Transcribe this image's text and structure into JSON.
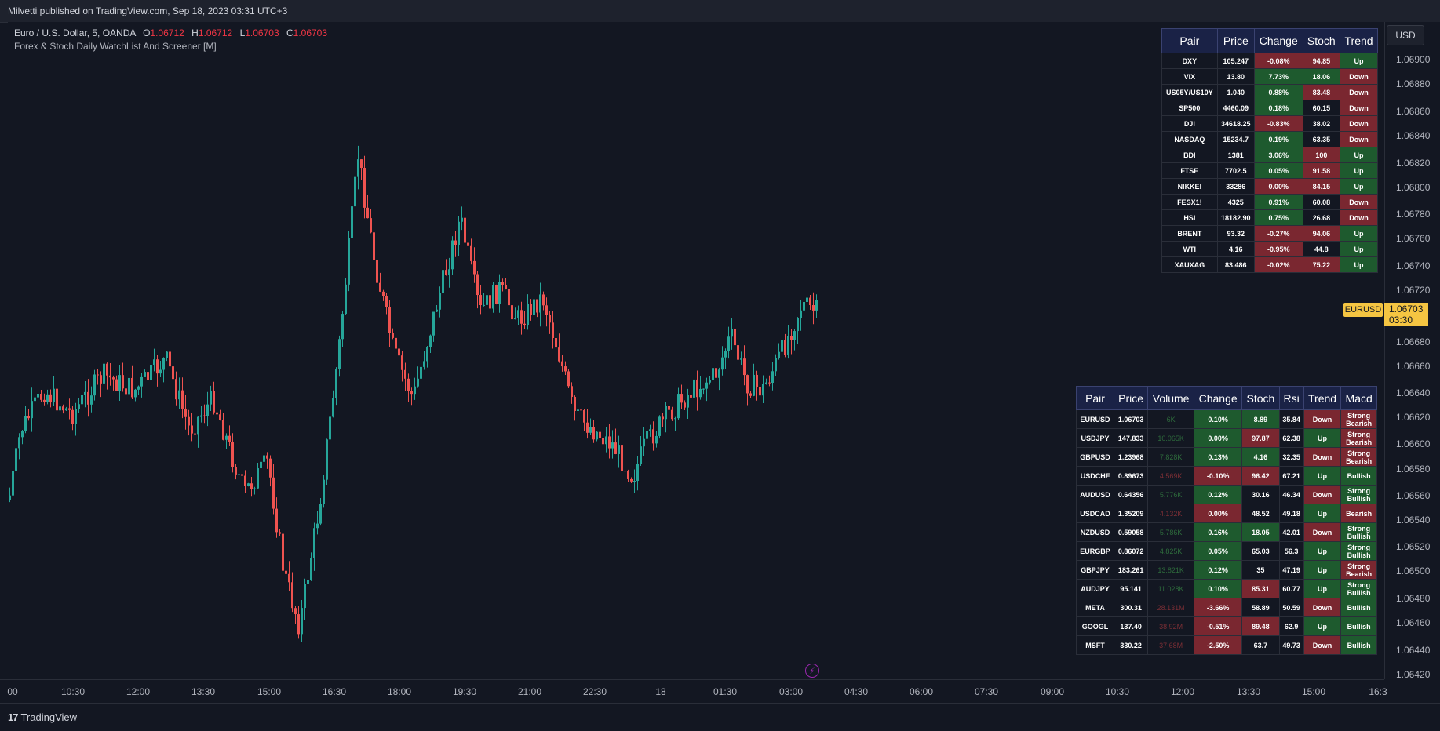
{
  "header": {
    "publisher": "Milvetti published on TradingView.com, Sep 18, 2023 03:31 UTC+3"
  },
  "legend": {
    "symbol": "Euro / U.S. Dollar, 5, OANDA",
    "open_label": "O",
    "open": "1.06712",
    "high_label": "H",
    "high": "1.06712",
    "low_label": "L",
    "low": "1.06703",
    "close_label": "C",
    "close": "1.06703",
    "indicator": "Forex & Stoch Daily WatchList And Screener [M]"
  },
  "currency_button": "USD",
  "price_axis": [
    "1.06900",
    "1.06880",
    "1.06860",
    "1.06840",
    "1.06820",
    "1.06800",
    "1.06780",
    "1.06760",
    "1.06740",
    "1.06720",
    "1.06680",
    "1.06660",
    "1.06640",
    "1.06620",
    "1.06600",
    "1.06580",
    "1.06560",
    "1.06540",
    "1.06520",
    "1.06500",
    "1.06480",
    "1.06460",
    "1.06440",
    "1.06420"
  ],
  "current_price": {
    "symbol": "EURUSD",
    "price": "1.06703",
    "countdown": "03:30"
  },
  "time_axis": [
    "00",
    "10:30",
    "12:00",
    "13:30",
    "15:00",
    "16:30",
    "18:00",
    "19:30",
    "21:00",
    "22:30",
    "18",
    "01:30",
    "03:00",
    "04:30",
    "06:00",
    "07:30",
    "09:00",
    "10:30",
    "12:00",
    "13:30",
    "15:00",
    "16:3"
  ],
  "footer": {
    "brand": "TradingView",
    "brand_mark": "17"
  },
  "colors": {
    "up": "#26a69a",
    "down": "#ef5350",
    "cell_green": "#1e5a2e",
    "cell_red": "#7a2730",
    "header_bg": "#1a2246",
    "price_tag": "#f5c542"
  },
  "table1": {
    "headers": [
      "Pair",
      "Price",
      "Change",
      "Stoch",
      "Trend"
    ],
    "rows": [
      {
        "pair": "DXY",
        "price": "105.247",
        "change": "-0.08%",
        "stoch": "94.85",
        "trend": "Up",
        "cc": "r",
        "sc": "r",
        "tc": "g"
      },
      {
        "pair": "VIX",
        "price": "13.80",
        "change": "7.73%",
        "stoch": "18.06",
        "trend": "Down",
        "cc": "g",
        "sc": "g",
        "tc": "r"
      },
      {
        "pair": "US05Y/US10Y",
        "price": "1.040",
        "change": "0.88%",
        "stoch": "83.48",
        "trend": "Down",
        "cc": "g",
        "sc": "r",
        "tc": "r"
      },
      {
        "pair": "SP500",
        "price": "4460.09",
        "change": "0.18%",
        "stoch": "60.15",
        "trend": "Down",
        "cc": "g",
        "sc": "n",
        "tc": "r"
      },
      {
        "pair": "DJI",
        "price": "34618.25",
        "change": "-0.83%",
        "stoch": "38.02",
        "trend": "Down",
        "cc": "r",
        "sc": "n",
        "tc": "r"
      },
      {
        "pair": "NASDAQ",
        "price": "15234.7",
        "change": "0.19%",
        "stoch": "63.35",
        "trend": "Down",
        "cc": "g",
        "sc": "n",
        "tc": "r"
      },
      {
        "pair": "BDI",
        "price": "1381",
        "change": "3.06%",
        "stoch": "100",
        "trend": "Up",
        "cc": "g",
        "sc": "r",
        "tc": "g"
      },
      {
        "pair": "FTSE",
        "price": "7702.5",
        "change": "0.05%",
        "stoch": "91.58",
        "trend": "Up",
        "cc": "g",
        "sc": "r",
        "tc": "g"
      },
      {
        "pair": "NIKKEI",
        "price": "33286",
        "change": "0.00%",
        "stoch": "84.15",
        "trend": "Up",
        "cc": "r",
        "sc": "r",
        "tc": "g"
      },
      {
        "pair": "FESX1!",
        "price": "4325",
        "change": "0.91%",
        "stoch": "60.08",
        "trend": "Down",
        "cc": "g",
        "sc": "n",
        "tc": "r"
      },
      {
        "pair": "HSI",
        "price": "18182.90",
        "change": "0.75%",
        "stoch": "26.68",
        "trend": "Down",
        "cc": "g",
        "sc": "n",
        "tc": "r"
      },
      {
        "pair": "BRENT",
        "price": "93.32",
        "change": "-0.27%",
        "stoch": "94.06",
        "trend": "Up",
        "cc": "r",
        "sc": "r",
        "tc": "g"
      },
      {
        "pair": "WTI",
        "price": "4.16",
        "change": "-0.95%",
        "stoch": "44.8",
        "trend": "Up",
        "cc": "r",
        "sc": "n",
        "tc": "g"
      },
      {
        "pair": "XAUXAG",
        "price": "83.486",
        "change": "-0.02%",
        "stoch": "75.22",
        "trend": "Up",
        "cc": "r",
        "sc": "r",
        "tc": "g"
      }
    ]
  },
  "table2": {
    "headers": [
      "Pair",
      "Price",
      "Volume",
      "Change",
      "Stoch",
      "Rsi",
      "Trend",
      "Macd"
    ],
    "rows": [
      {
        "pair": "EURUSD",
        "price": "1.06703",
        "volume": "6K",
        "vc": "vg",
        "change": "0.10%",
        "cc": "g",
        "stoch": "8.89",
        "sc": "g",
        "rsi": "35.84",
        "trend": "Down",
        "tc": "r",
        "macd1": "Strong",
        "macd2": "Bearish",
        "mc": "r"
      },
      {
        "pair": "USDJPY",
        "price": "147.833",
        "volume": "10.065K",
        "vc": "vg",
        "change": "0.00%",
        "cc": "g",
        "stoch": "97.87",
        "sc": "r",
        "rsi": "62.38",
        "trend": "Up",
        "tc": "g",
        "macd1": "Strong",
        "macd2": "Bearish",
        "mc": "r"
      },
      {
        "pair": "GBPUSD",
        "price": "1.23968",
        "volume": "7.828K",
        "vc": "vg",
        "change": "0.13%",
        "cc": "g",
        "stoch": "4.16",
        "sc": "g",
        "rsi": "32.35",
        "trend": "Down",
        "tc": "r",
        "macd1": "Strong",
        "macd2": "Bearish",
        "mc": "r"
      },
      {
        "pair": "USDCHF",
        "price": "0.89673",
        "volume": "4.569K",
        "vc": "vr",
        "change": "-0.10%",
        "cc": "r",
        "stoch": "96.42",
        "sc": "r",
        "rsi": "67.21",
        "trend": "Up",
        "tc": "g",
        "macd1": "",
        "macd2": "Bullish",
        "mc": "g"
      },
      {
        "pair": "AUDUSD",
        "price": "0.64356",
        "volume": "5.776K",
        "vc": "vg",
        "change": "0.12%",
        "cc": "g",
        "stoch": "30.16",
        "sc": "n",
        "rsi": "46.34",
        "trend": "Down",
        "tc": "r",
        "macd1": "Strong",
        "macd2": "Bullish",
        "mc": "g"
      },
      {
        "pair": "USDCAD",
        "price": "1.35209",
        "volume": "4.132K",
        "vc": "vr",
        "change": "0.00%",
        "cc": "r",
        "stoch": "48.52",
        "sc": "n",
        "rsi": "49.18",
        "trend": "Up",
        "tc": "g",
        "macd1": "",
        "macd2": "Bearish",
        "mc": "r"
      },
      {
        "pair": "NZDUSD",
        "price": "0.59058",
        "volume": "5.786K",
        "vc": "vg",
        "change": "0.16%",
        "cc": "g",
        "stoch": "18.05",
        "sc": "g",
        "rsi": "42.01",
        "trend": "Down",
        "tc": "r",
        "macd1": "Strong",
        "macd2": "Bullish",
        "mc": "g"
      },
      {
        "pair": "EURGBP",
        "price": "0.86072",
        "volume": "4.825K",
        "vc": "vg",
        "change": "0.05%",
        "cc": "g",
        "stoch": "65.03",
        "sc": "n",
        "rsi": "56.3",
        "trend": "Up",
        "tc": "g",
        "macd1": "Strong",
        "macd2": "Bullish",
        "mc": "g"
      },
      {
        "pair": "GBPJPY",
        "price": "183.261",
        "volume": "13.821K",
        "vc": "vg",
        "change": "0.12%",
        "cc": "g",
        "stoch": "35",
        "sc": "n",
        "rsi": "47.19",
        "trend": "Up",
        "tc": "g",
        "macd1": "Strong",
        "macd2": "Bearish",
        "mc": "r"
      },
      {
        "pair": "AUDJPY",
        "price": "95.141",
        "volume": "11.028K",
        "vc": "vg",
        "change": "0.10%",
        "cc": "g",
        "stoch": "85.31",
        "sc": "r",
        "rsi": "60.77",
        "trend": "Up",
        "tc": "g",
        "macd1": "Strong",
        "macd2": "Bullish",
        "mc": "g"
      },
      {
        "pair": "META",
        "price": "300.31",
        "volume": "28.131M",
        "vc": "vr",
        "change": "-3.66%",
        "cc": "r",
        "stoch": "58.89",
        "sc": "n",
        "rsi": "50.59",
        "trend": "Down",
        "tc": "r",
        "macd1": "",
        "macd2": "Bullish",
        "mc": "g"
      },
      {
        "pair": "GOOGL",
        "price": "137.40",
        "volume": "38.92M",
        "vc": "vr",
        "change": "-0.51%",
        "cc": "r",
        "stoch": "89.48",
        "sc": "r",
        "rsi": "62.9",
        "trend": "Up",
        "tc": "g",
        "macd1": "",
        "macd2": "Bullish",
        "mc": "g"
      },
      {
        "pair": "MSFT",
        "price": "330.22",
        "volume": "37.68M",
        "vc": "vr",
        "change": "-2.50%",
        "cc": "r",
        "stoch": "63.7",
        "sc": "n",
        "rsi": "49.73",
        "trend": "Down",
        "tc": "r",
        "macd1": "",
        "macd2": "Bullish",
        "mc": "g"
      }
    ]
  }
}
